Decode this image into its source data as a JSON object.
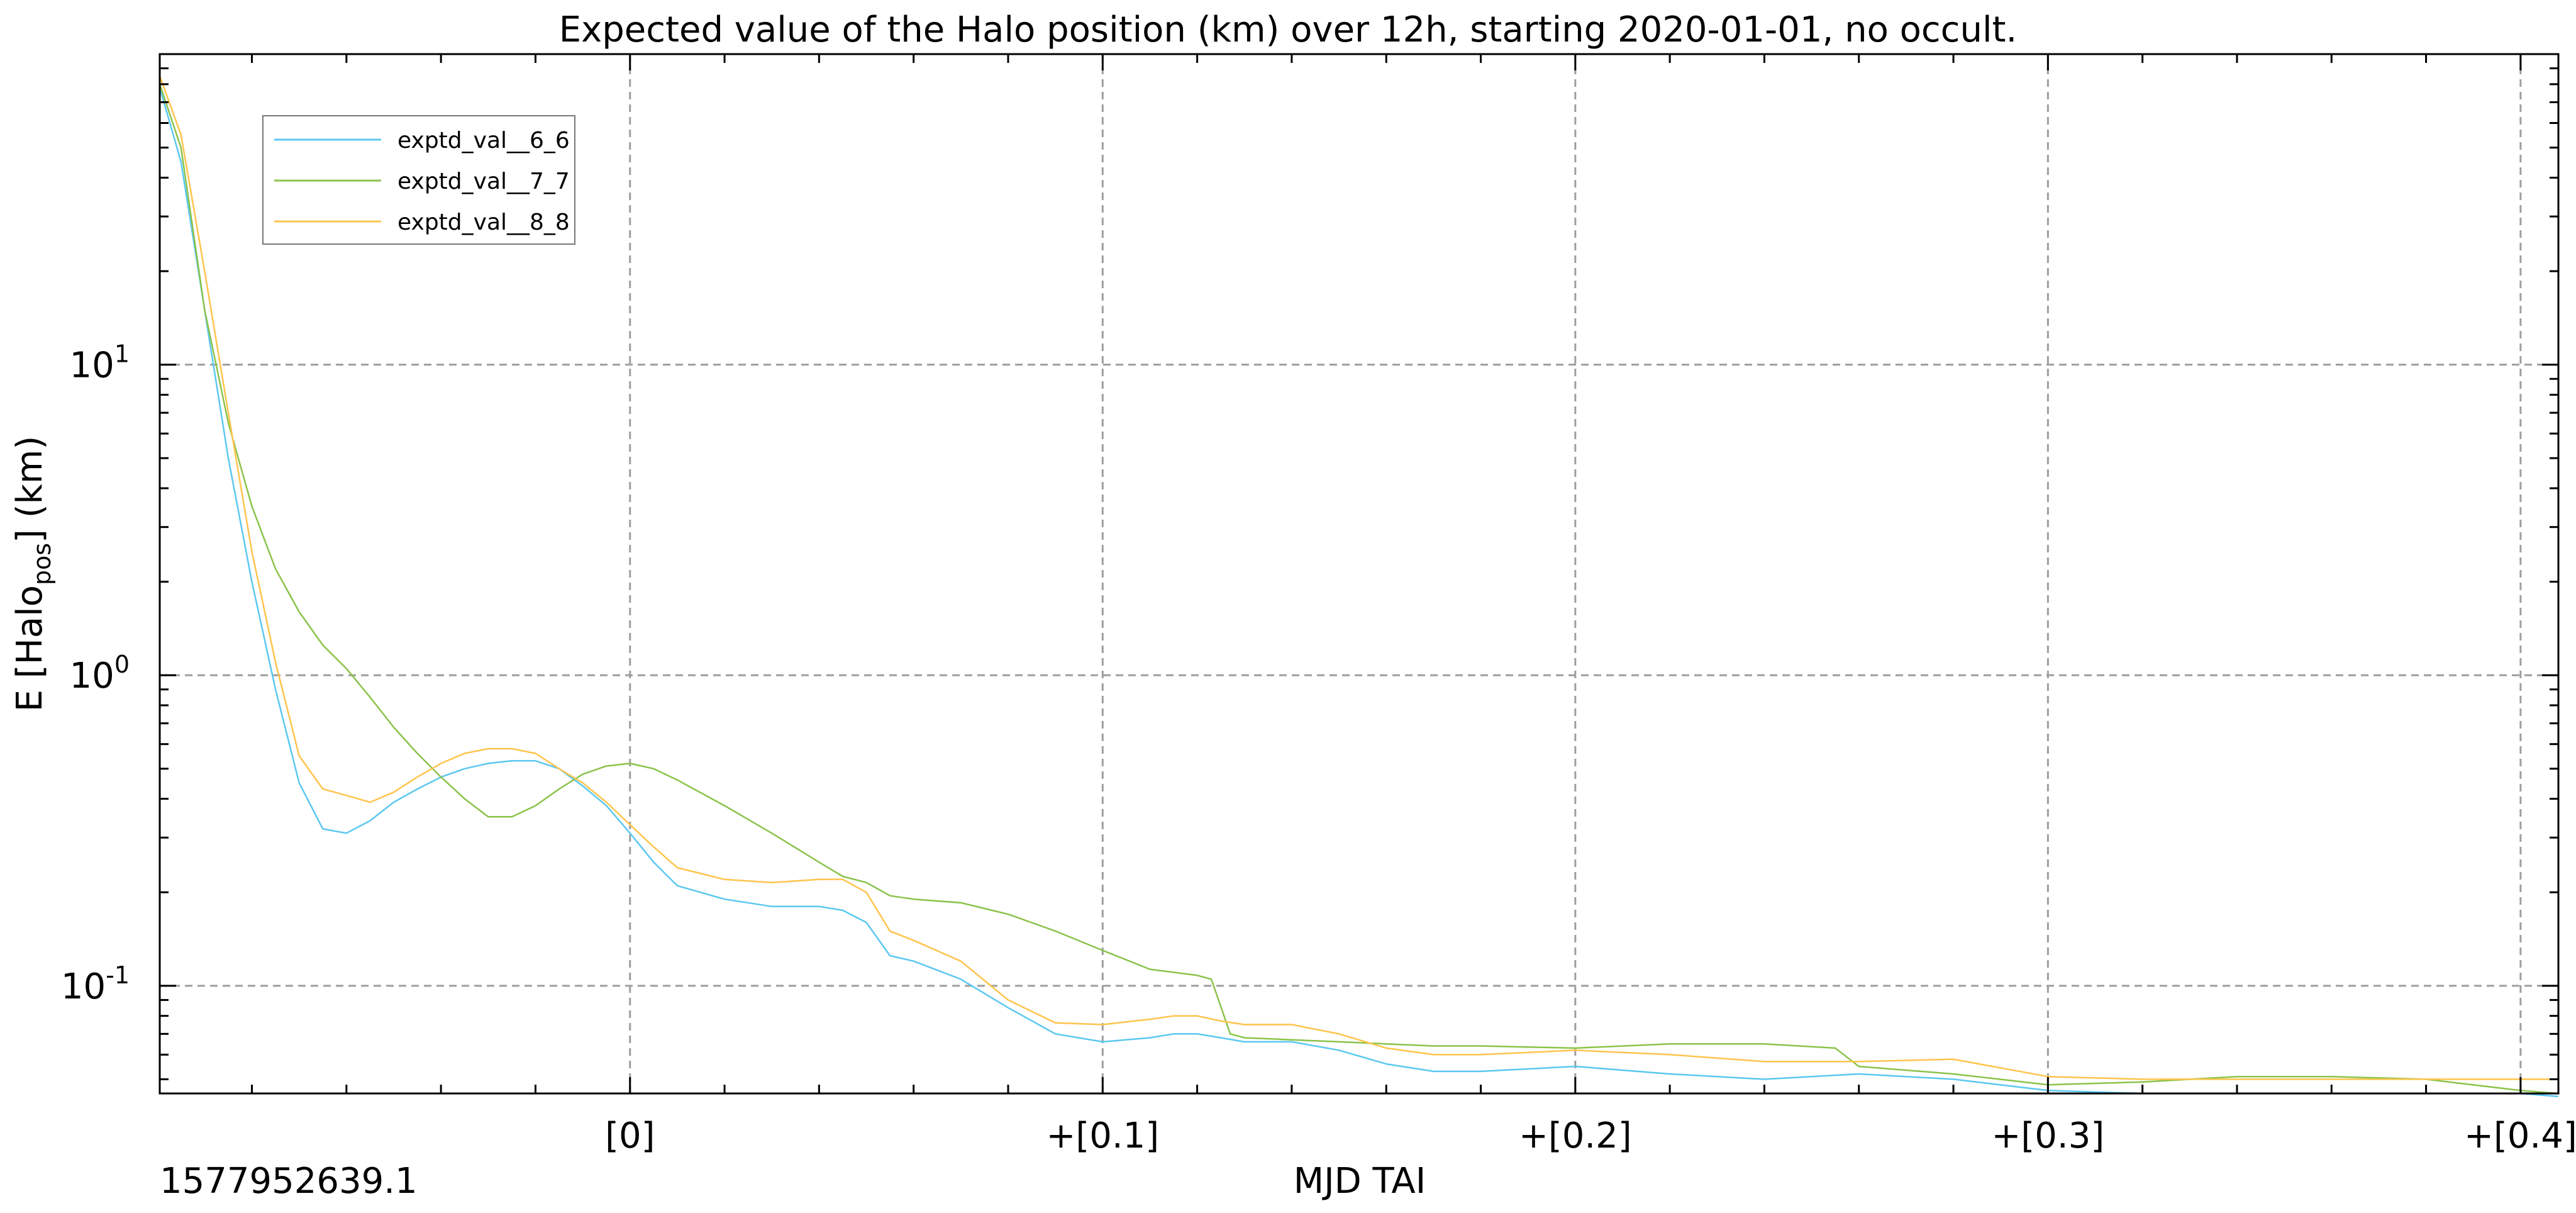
{
  "chart_data": {
    "type": "line",
    "title": "Expected value of the Halo position (km) over 12h, starting 2020-01-01, no occult.",
    "xlabel": "MJD TAI",
    "ylabel": "E [Halo",
    "ylabel_sub": "pos",
    "ylabel_tail": "] (km)",
    "x_offset_label": "1577952639.1",
    "x_ticks": [
      {
        "value": 0.0,
        "label": "[0]"
      },
      {
        "value": 0.1,
        "label": "+[0.1]"
      },
      {
        "value": 0.2,
        "label": "+[0.2]"
      },
      {
        "value": 0.3,
        "label": "+[0.3]"
      },
      {
        "value": 0.4,
        "label": "+[0.4]"
      }
    ],
    "y_ticks": [
      {
        "value": 10,
        "base": "10",
        "exp": "1"
      },
      {
        "value": 1,
        "base": "10",
        "exp": "0"
      },
      {
        "value": 0.1,
        "base": "10",
        "exp": "-1"
      }
    ],
    "y_scale": "log",
    "xlim": [
      -0.0995,
      0.408
    ],
    "ylim": [
      0.045,
      100
    ],
    "grid": true,
    "legend_position": "top-left",
    "series": [
      {
        "name": "exptd_val__6_6",
        "color": "#5bc8f0",
        "points": [
          [
            -0.0995,
            78
          ],
          [
            -0.095,
            45
          ],
          [
            -0.09,
            15
          ],
          [
            -0.085,
            5
          ],
          [
            -0.08,
            2
          ],
          [
            -0.075,
            0.9
          ],
          [
            -0.07,
            0.45
          ],
          [
            -0.065,
            0.32
          ],
          [
            -0.06,
            0.31
          ],
          [
            -0.055,
            0.34
          ],
          [
            -0.05,
            0.39
          ],
          [
            -0.045,
            0.43
          ],
          [
            -0.04,
            0.47
          ],
          [
            -0.035,
            0.5
          ],
          [
            -0.03,
            0.52
          ],
          [
            -0.025,
            0.53
          ],
          [
            -0.02,
            0.53
          ],
          [
            -0.015,
            0.5
          ],
          [
            -0.01,
            0.44
          ],
          [
            -0.005,
            0.38
          ],
          [
            0.0,
            0.31
          ],
          [
            0.005,
            0.25
          ],
          [
            0.01,
            0.21
          ],
          [
            0.02,
            0.19
          ],
          [
            0.03,
            0.18
          ],
          [
            0.04,
            0.18
          ],
          [
            0.045,
            0.175
          ],
          [
            0.05,
            0.16
          ],
          [
            0.055,
            0.125
          ],
          [
            0.06,
            0.12
          ],
          [
            0.07,
            0.105
          ],
          [
            0.08,
            0.085
          ],
          [
            0.09,
            0.07
          ],
          [
            0.1,
            0.066
          ],
          [
            0.11,
            0.068
          ],
          [
            0.115,
            0.07
          ],
          [
            0.12,
            0.07
          ],
          [
            0.125,
            0.068
          ],
          [
            0.13,
            0.066
          ],
          [
            0.14,
            0.066
          ],
          [
            0.15,
            0.062
          ],
          [
            0.16,
            0.056
          ],
          [
            0.17,
            0.053
          ],
          [
            0.18,
            0.053
          ],
          [
            0.2,
            0.055
          ],
          [
            0.22,
            0.052
          ],
          [
            0.24,
            0.05
          ],
          [
            0.26,
            0.052
          ],
          [
            0.28,
            0.05
          ],
          [
            0.3,
            0.046
          ],
          [
            0.32,
            0.045
          ],
          [
            0.34,
            0.045
          ],
          [
            0.36,
            0.045
          ],
          [
            0.38,
            0.045
          ],
          [
            0.4,
            0.045
          ],
          [
            0.408,
            0.044
          ]
        ]
      },
      {
        "name": "exptd_val__7_7",
        "color": "#8bc34a",
        "points": [
          [
            -0.0995,
            80
          ],
          [
            -0.095,
            50
          ],
          [
            -0.09,
            15
          ],
          [
            -0.085,
            6.5
          ],
          [
            -0.08,
            3.5
          ],
          [
            -0.075,
            2.2
          ],
          [
            -0.07,
            1.6
          ],
          [
            -0.065,
            1.25
          ],
          [
            -0.06,
            1.05
          ],
          [
            -0.055,
            0.85
          ],
          [
            -0.05,
            0.68
          ],
          [
            -0.045,
            0.56
          ],
          [
            -0.04,
            0.47
          ],
          [
            -0.035,
            0.4
          ],
          [
            -0.03,
            0.35
          ],
          [
            -0.025,
            0.35
          ],
          [
            -0.02,
            0.38
          ],
          [
            -0.015,
            0.43
          ],
          [
            -0.01,
            0.48
          ],
          [
            -0.005,
            0.51
          ],
          [
            0.0,
            0.52
          ],
          [
            0.005,
            0.5
          ],
          [
            0.01,
            0.46
          ],
          [
            0.02,
            0.38
          ],
          [
            0.03,
            0.31
          ],
          [
            0.04,
            0.25
          ],
          [
            0.045,
            0.225
          ],
          [
            0.05,
            0.215
          ],
          [
            0.055,
            0.195
          ],
          [
            0.06,
            0.19
          ],
          [
            0.07,
            0.185
          ],
          [
            0.08,
            0.17
          ],
          [
            0.09,
            0.15
          ],
          [
            0.1,
            0.13
          ],
          [
            0.11,
            0.113
          ],
          [
            0.12,
            0.108
          ],
          [
            0.123,
            0.105
          ],
          [
            0.127,
            0.07
          ],
          [
            0.13,
            0.068
          ],
          [
            0.14,
            0.067
          ],
          [
            0.15,
            0.066
          ],
          [
            0.16,
            0.065
          ],
          [
            0.17,
            0.064
          ],
          [
            0.18,
            0.064
          ],
          [
            0.2,
            0.063
          ],
          [
            0.22,
            0.065
          ],
          [
            0.24,
            0.065
          ],
          [
            0.255,
            0.063
          ],
          [
            0.26,
            0.055
          ],
          [
            0.28,
            0.052
          ],
          [
            0.3,
            0.048
          ],
          [
            0.32,
            0.049
          ],
          [
            0.34,
            0.051
          ],
          [
            0.36,
            0.051
          ],
          [
            0.38,
            0.05
          ],
          [
            0.4,
            0.046
          ],
          [
            0.408,
            0.045
          ]
        ]
      },
      {
        "name": "exptd_val__8_8",
        "color": "#ffc44d",
        "points": [
          [
            -0.0995,
            85
          ],
          [
            -0.095,
            55
          ],
          [
            -0.09,
            20
          ],
          [
            -0.085,
            7
          ],
          [
            -0.08,
            2.5
          ],
          [
            -0.075,
            1.1
          ],
          [
            -0.07,
            0.55
          ],
          [
            -0.065,
            0.43
          ],
          [
            -0.06,
            0.41
          ],
          [
            -0.055,
            0.39
          ],
          [
            -0.05,
            0.42
          ],
          [
            -0.045,
            0.47
          ],
          [
            -0.04,
            0.52
          ],
          [
            -0.035,
            0.56
          ],
          [
            -0.03,
            0.58
          ],
          [
            -0.025,
            0.58
          ],
          [
            -0.02,
            0.56
          ],
          [
            -0.015,
            0.5
          ],
          [
            -0.01,
            0.45
          ],
          [
            -0.005,
            0.39
          ],
          [
            0.0,
            0.33
          ],
          [
            0.005,
            0.28
          ],
          [
            0.01,
            0.24
          ],
          [
            0.02,
            0.22
          ],
          [
            0.03,
            0.215
          ],
          [
            0.04,
            0.22
          ],
          [
            0.045,
            0.22
          ],
          [
            0.05,
            0.2
          ],
          [
            0.055,
            0.15
          ],
          [
            0.06,
            0.14
          ],
          [
            0.07,
            0.12
          ],
          [
            0.08,
            0.09
          ],
          [
            0.09,
            0.076
          ],
          [
            0.1,
            0.075
          ],
          [
            0.11,
            0.078
          ],
          [
            0.115,
            0.08
          ],
          [
            0.12,
            0.08
          ],
          [
            0.125,
            0.077
          ],
          [
            0.13,
            0.075
          ],
          [
            0.14,
            0.075
          ],
          [
            0.15,
            0.07
          ],
          [
            0.16,
            0.063
          ],
          [
            0.17,
            0.06
          ],
          [
            0.18,
            0.06
          ],
          [
            0.2,
            0.062
          ],
          [
            0.22,
            0.06
          ],
          [
            0.24,
            0.057
          ],
          [
            0.26,
            0.057
          ],
          [
            0.28,
            0.058
          ],
          [
            0.3,
            0.051
          ],
          [
            0.32,
            0.05
          ],
          [
            0.34,
            0.05
          ],
          [
            0.36,
            0.05
          ],
          [
            0.38,
            0.05
          ],
          [
            0.4,
            0.05
          ],
          [
            0.408,
            0.05
          ]
        ]
      }
    ]
  }
}
